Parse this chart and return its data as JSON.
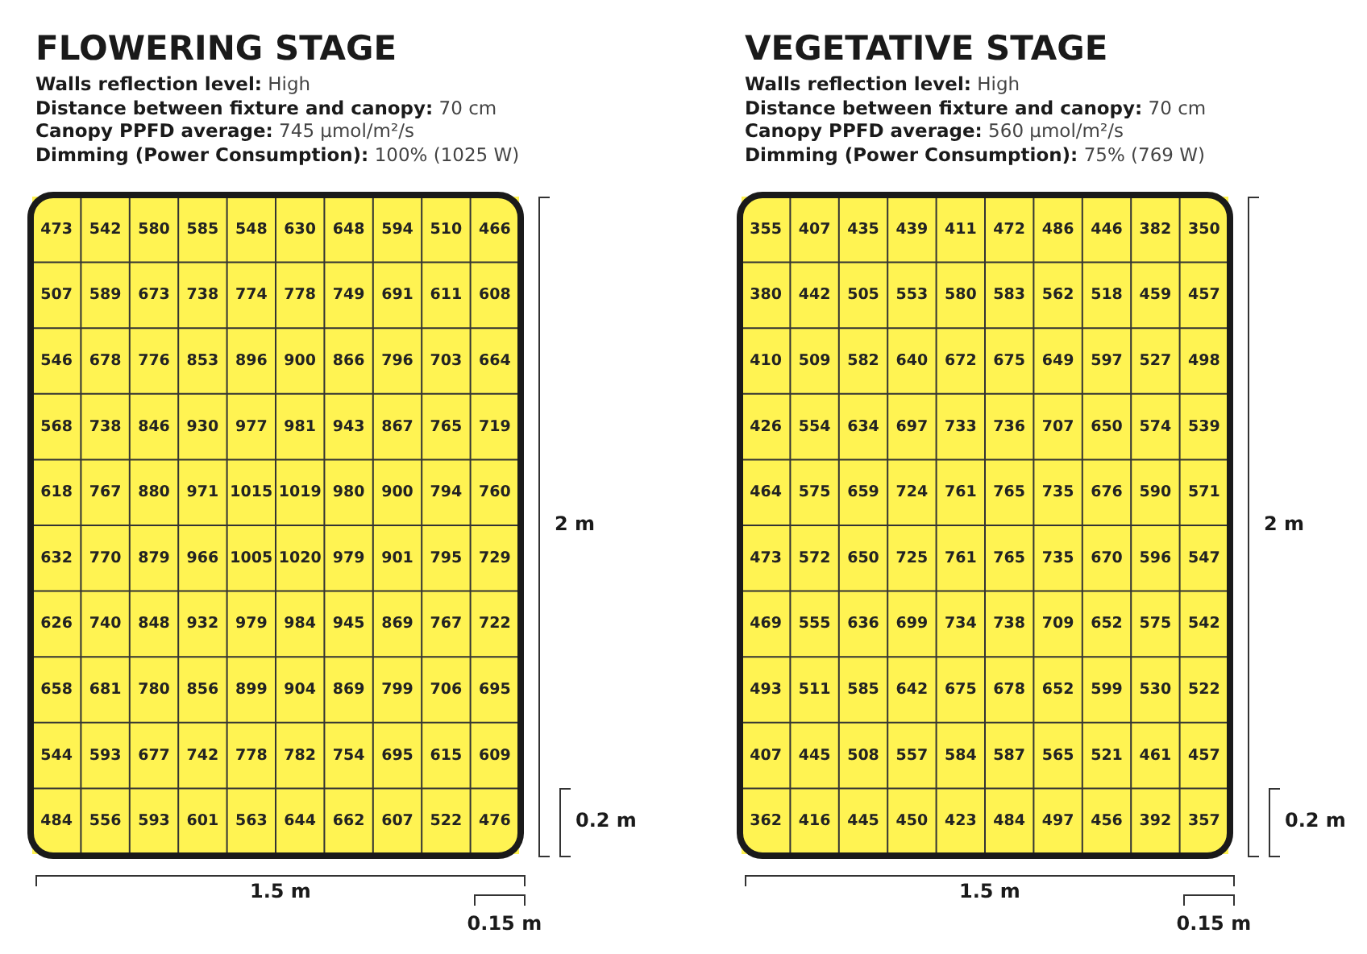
{
  "chart_data": [
    {
      "type": "heatmap",
      "title": "FLOWERING STAGE",
      "color": "#fff352",
      "data_labels": true,
      "annotations": [
        "Walls reflection level: High",
        "Distance between fixture and canopy: 70 cm",
        "Canopy PPFD average: 745 µmol/m²/s",
        "Dimming (Power Consumption): 100% (1025 W)",
        "2 m",
        "1.5 m",
        "0.2 m",
        "0.15 m"
      ],
      "categories": [
        null,
        null,
        null,
        null,
        null,
        null,
        null,
        null,
        null,
        null
      ],
      "y_categories": [
        null,
        null,
        null,
        null,
        null,
        null,
        null,
        null,
        null,
        null
      ],
      "cells": [
        [
          473,
          542,
          580,
          585,
          548,
          630,
          648,
          594,
          510,
          466
        ],
        [
          507,
          589,
          673,
          738,
          774,
          778,
          749,
          691,
          611,
          608
        ],
        [
          546,
          678,
          776,
          853,
          896,
          900,
          866,
          796,
          703,
          664
        ],
        [
          568,
          738,
          846,
          930,
          977,
          981,
          943,
          867,
          765,
          719
        ],
        [
          618,
          767,
          880,
          971,
          1015,
          1019,
          980,
          900,
          794,
          760
        ],
        [
          632,
          770,
          879,
          966,
          1005,
          1020,
          979,
          901,
          795,
          729
        ],
        [
          626,
          740,
          848,
          932,
          979,
          984,
          945,
          869,
          767,
          722
        ],
        [
          658,
          681,
          780,
          856,
          899,
          904,
          869,
          799,
          706,
          695
        ],
        [
          544,
          593,
          677,
          742,
          778,
          782,
          754,
          695,
          615,
          609
        ],
        [
          484,
          556,
          593,
          601,
          563,
          644,
          662,
          607,
          522,
          476
        ]
      ]
    },
    {
      "type": "heatmap",
      "title": "VEGETATIVE STAGE",
      "color": "#fff352",
      "data_labels": true,
      "annotations": [
        "Walls reflection level: High",
        "Distance between fixture and canopy: 70 cm",
        "Canopy PPFD average: 560 µmol/m²/s",
        "Dimming (Power Consumption): 75% (769 W)",
        "2 m",
        "1.5 m",
        "0.2 m",
        "0.15 m"
      ],
      "categories": [
        null,
        null,
        null,
        null,
        null,
        null,
        null,
        null,
        null,
        null
      ],
      "y_categories": [
        null,
        null,
        null,
        null,
        null,
        null,
        null,
        null,
        null,
        null
      ],
      "cells": [
        [
          355,
          407,
          435,
          439,
          411,
          472,
          486,
          446,
          382,
          350
        ],
        [
          380,
          442,
          505,
          553,
          580,
          583,
          562,
          518,
          459,
          457
        ],
        [
          410,
          509,
          582,
          640,
          672,
          675,
          649,
          597,
          527,
          498
        ],
        [
          426,
          554,
          634,
          697,
          733,
          736,
          707,
          650,
          574,
          539
        ],
        [
          464,
          575,
          659,
          724,
          761,
          765,
          735,
          676,
          590,
          571
        ],
        [
          473,
          572,
          650,
          725,
          761,
          765,
          735,
          670,
          596,
          547
        ],
        [
          469,
          555,
          636,
          699,
          734,
          738,
          709,
          652,
          575,
          542
        ],
        [
          493,
          511,
          585,
          642,
          675,
          678,
          652,
          599,
          530,
          522
        ],
        [
          407,
          445,
          508,
          557,
          584,
          587,
          565,
          521,
          461,
          457
        ],
        [
          362,
          416,
          445,
          450,
          423,
          484,
          497,
          456,
          392,
          357
        ]
      ]
    }
  ]
}
